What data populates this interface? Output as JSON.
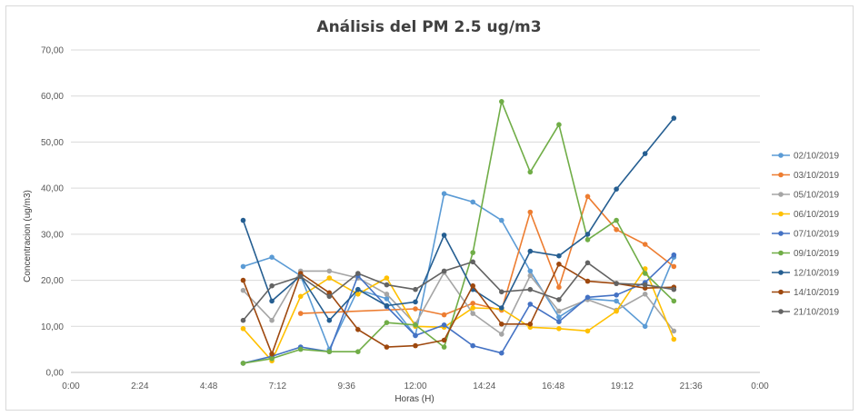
{
  "chart_data": {
    "type": "line",
    "title": "Análisis del PM 2.5 ug/m3",
    "xlabel": "Horas (H)",
    "ylabel": "Concentracion (ug/m3)",
    "ylim": [
      0,
      70
    ],
    "xlim": [
      "0:00",
      "24:00"
    ],
    "x_ticks": [
      "0:00",
      "2:24",
      "4:48",
      "7:12",
      "9:36",
      "12:00",
      "14:24",
      "16:48",
      "19:12",
      "21:36",
      "0:00"
    ],
    "y_ticks": [
      "0,00",
      "10,00",
      "20,00",
      "30,00",
      "40,00",
      "50,00",
      "60,00",
      "70,00"
    ],
    "grid": "horizontal",
    "legend_position": "right",
    "x": [
      "6:00",
      "7:00",
      "8:00",
      "9:00",
      "10:00",
      "11:00",
      "12:00",
      "13:00",
      "14:00",
      "15:00",
      "16:00",
      "17:00",
      "18:00",
      "19:00",
      "20:00",
      "21:00"
    ],
    "series": [
      {
        "name": "02/10/2019",
        "color": "#5b9bd5",
        "values": [
          23.0,
          25.0,
          21.0,
          5.0,
          18.0,
          16.0,
          8.0,
          38.8,
          37.0,
          33.0,
          22.0,
          12.0,
          16.0,
          15.5,
          10.0,
          25.0
        ]
      },
      {
        "name": "03/10/2019",
        "color": "#ed7d31",
        "values": [
          null,
          null,
          12.8,
          null,
          null,
          null,
          13.8,
          12.5,
          15.0,
          13.5,
          34.8,
          18.5,
          38.2,
          31.0,
          27.8,
          23.0
        ]
      },
      {
        "name": "05/10/2019",
        "color": "#a5a5a5",
        "values": [
          17.8,
          11.3,
          22.0,
          22.0,
          20.5,
          17.0,
          10.5,
          21.7,
          12.8,
          8.3,
          21.0,
          13.3,
          15.8,
          13.5,
          17.0,
          9.0
        ]
      },
      {
        "name": "06/10/2019",
        "color": "#ffc000",
        "values": [
          9.5,
          2.5,
          16.5,
          20.5,
          17.0,
          20.5,
          10.0,
          9.8,
          14.0,
          13.8,
          9.8,
          9.5,
          9.0,
          13.3,
          22.5,
          7.2
        ]
      },
      {
        "name": "07/10/2019",
        "color": "#4472c4",
        "values": [
          2.0,
          3.5,
          5.5,
          4.5,
          21.0,
          14.3,
          8.0,
          10.3,
          5.8,
          4.2,
          14.8,
          11.0,
          16.3,
          16.8,
          19.5,
          25.5
        ]
      },
      {
        "name": "09/10/2019",
        "color": "#70ad47",
        "values": [
          2.0,
          3.0,
          5.0,
          4.5,
          4.5,
          10.8,
          10.3,
          5.5,
          26.0,
          58.8,
          43.5,
          53.8,
          28.8,
          33.0,
          21.5,
          15.5
        ]
      },
      {
        "name": "12/10/2019",
        "color": "#255e91",
        "values": [
          33.0,
          15.5,
          21.0,
          11.3,
          18.0,
          14.5,
          15.3,
          29.8,
          18.0,
          14.0,
          26.3,
          25.3,
          30.0,
          39.8,
          47.5,
          55.2
        ]
      },
      {
        "name": "14/10/2019",
        "color": "#9e480e",
        "values": [
          20.0,
          4.0,
          21.5,
          17.3,
          9.3,
          5.5,
          5.8,
          7.0,
          18.8,
          10.5,
          10.5,
          23.5,
          19.8,
          19.3,
          18.3,
          18.5
        ]
      },
      {
        "name": "21/10/2019",
        "color": "#636363",
        "values": [
          11.3,
          18.8,
          20.8,
          16.5,
          21.5,
          19.0,
          18.0,
          22.0,
          24.0,
          17.5,
          18.0,
          15.8,
          23.8,
          19.3,
          19.0,
          18.0
        ]
      }
    ]
  }
}
